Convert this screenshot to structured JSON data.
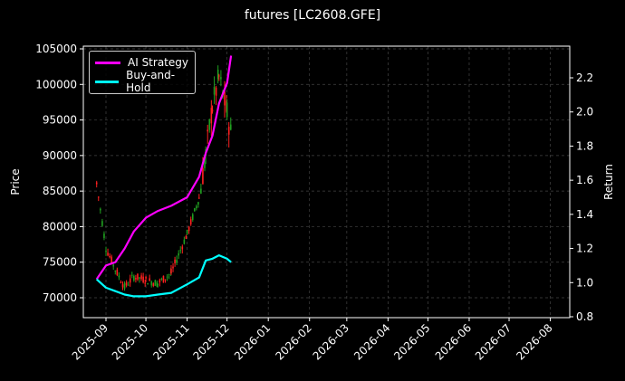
{
  "chart_data": {
    "type": "line",
    "title": "futures [LC2608.GFE]",
    "xlabel": "",
    "ylabel": "Price",
    "y2label": "Return",
    "ylim": [
      67500,
      105500
    ],
    "y2lim": [
      0.79,
      2.38
    ],
    "x_ticks": [
      "2025-09",
      "2025-10",
      "2025-11",
      "2025-12",
      "2026-01",
      "2026-02",
      "2026-03",
      "2026-04",
      "2026-05",
      "2026-06",
      "2026-07",
      "2026-08"
    ],
    "y_ticks": [
      70000,
      75000,
      80000,
      85000,
      90000,
      95000,
      100000,
      105000
    ],
    "y2_ticks": [
      0.8,
      1.0,
      1.2,
      1.4,
      1.6,
      1.8,
      2.0,
      2.2
    ],
    "grid": true,
    "legend_position": "upper left",
    "legend": [
      "AI Strategy",
      "Buy-and-Hold"
    ],
    "series": [
      {
        "name": "AI Strategy",
        "axis": "right",
        "color": "#ff00ff",
        "x": [
          "2025-08-25",
          "2025-09-01",
          "2025-09-08",
          "2025-09-15",
          "2025-09-22",
          "2025-10-01",
          "2025-10-10",
          "2025-10-20",
          "2025-11-01",
          "2025-11-10",
          "2025-11-15",
          "2025-11-20",
          "2025-11-25",
          "2025-12-01",
          "2025-12-04"
        ],
        "values": [
          1.02,
          1.1,
          1.12,
          1.2,
          1.3,
          1.38,
          1.42,
          1.45,
          1.5,
          1.62,
          1.76,
          1.86,
          2.05,
          2.17,
          2.33
        ]
      },
      {
        "name": "Buy-and-Hold",
        "axis": "right",
        "color": "#00ffff",
        "x": [
          "2025-08-25",
          "2025-09-01",
          "2025-09-08",
          "2025-09-15",
          "2025-09-22",
          "2025-10-01",
          "2025-10-10",
          "2025-10-20",
          "2025-11-01",
          "2025-11-10",
          "2025-11-15",
          "2025-11-20",
          "2025-11-25",
          "2025-12-01",
          "2025-12-04"
        ],
        "values": [
          1.02,
          0.97,
          0.95,
          0.93,
          0.92,
          0.92,
          0.93,
          0.94,
          0.99,
          1.03,
          1.13,
          1.14,
          1.16,
          1.14,
          1.12
        ]
      },
      {
        "name": "Price (candlestick)",
        "axis": "left",
        "type": "candlestick",
        "x": [
          "2025-08-25",
          "2025-09-01",
          "2025-09-08",
          "2025-09-15",
          "2025-09-22",
          "2025-10-01",
          "2025-10-10",
          "2025-10-20",
          "2025-11-01",
          "2025-11-10",
          "2025-11-15",
          "2025-11-20",
          "2025-11-25",
          "2025-12-01",
          "2025-12-04"
        ],
        "values": [
          86000,
          77000,
          74000,
          71500,
          73000,
          72500,
          72000,
          73500,
          79000,
          84000,
          90000,
          97000,
          101000,
          96000,
          93000
        ]
      }
    ]
  },
  "legend": {
    "items": [
      {
        "label": "AI Strategy",
        "color": "#ff00ff"
      },
      {
        "label": "Buy-and-Hold",
        "color": "#00ffff"
      }
    ]
  },
  "axes": {
    "ylabel": "Price",
    "y2label": "Return"
  }
}
